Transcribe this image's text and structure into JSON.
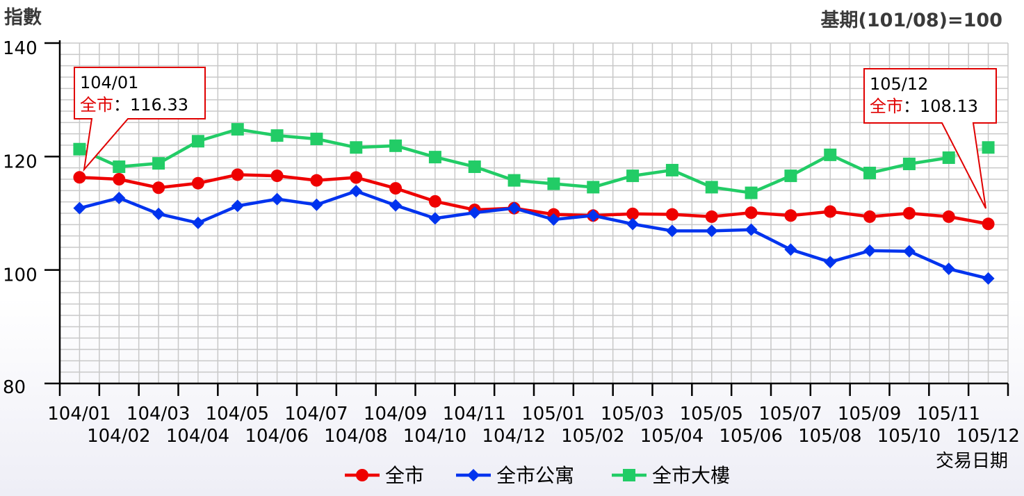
{
  "chart_data": {
    "type": "line",
    "ylabel": "指數",
    "base_note": "基期(101/08)=100",
    "xlabel": "交易日期",
    "ylim": [
      80,
      140
    ],
    "yticks": [
      80,
      100,
      120,
      140
    ],
    "grid": true,
    "legend_position": "bottom-center",
    "categories": [
      "104/01",
      "104/02",
      "104/03",
      "104/04",
      "104/05",
      "104/06",
      "104/07",
      "104/08",
      "104/09",
      "104/10",
      "104/11",
      "104/12",
      "105/01",
      "105/02",
      "105/03",
      "105/04",
      "105/05",
      "105/06",
      "105/07",
      "105/08",
      "105/09",
      "105/10",
      "105/11",
      "105/12"
    ],
    "series": [
      {
        "name": "全市",
        "color": "#ee0000",
        "marker": "circle",
        "values": [
          116.33,
          116.0,
          114.5,
          115.3,
          116.8,
          116.6,
          115.8,
          116.3,
          114.4,
          112.1,
          110.6,
          110.9,
          109.8,
          109.6,
          109.9,
          109.8,
          109.4,
          110.1,
          109.6,
          110.3,
          109.4,
          110.0,
          109.4,
          108.13
        ]
      },
      {
        "name": "全市公寓",
        "color": "#0033ee",
        "marker": "diamond",
        "values": [
          110.9,
          112.7,
          109.9,
          108.3,
          111.3,
          112.5,
          111.5,
          113.9,
          111.4,
          109.1,
          110.1,
          110.9,
          108.9,
          109.6,
          108.1,
          106.9,
          106.9,
          107.1,
          103.6,
          101.4,
          103.4,
          103.3,
          100.2,
          98.5
        ]
      },
      {
        "name": "全市大樓",
        "color": "#22cc66",
        "marker": "square",
        "values": [
          121.3,
          118.2,
          118.8,
          122.7,
          124.8,
          123.7,
          123.1,
          121.6,
          121.9,
          119.9,
          118.2,
          115.8,
          115.2,
          114.6,
          116.6,
          117.6,
          114.6,
          113.6,
          116.6,
          120.3,
          117.1,
          118.7,
          119.8,
          121.6
        ]
      }
    ],
    "callouts": [
      {
        "period": "104/01",
        "label": "全市",
        "sep": "：",
        "value": "116.33"
      },
      {
        "period": "105/12",
        "label": "全市",
        "sep": "：",
        "value": "108.13"
      }
    ]
  }
}
